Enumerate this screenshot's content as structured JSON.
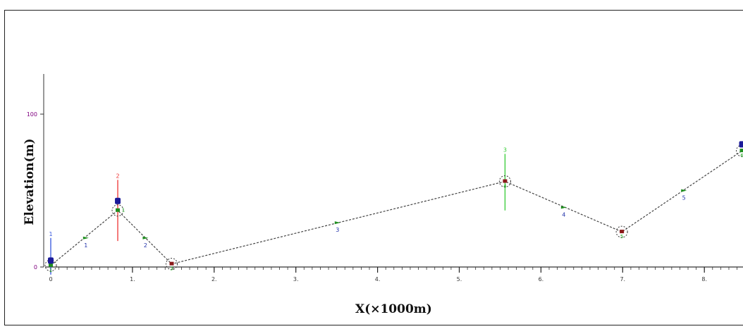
{
  "chart_data": {
    "type": "line",
    "title": "",
    "xlabel": "X(×1000m)",
    "ylabel": "Elevation(m)",
    "xlim": [
      0,
      8.5
    ],
    "ylim": [
      0,
      120
    ],
    "x_ticks": [
      {
        "value": 0,
        "label": "0"
      },
      {
        "value": 1,
        "label": "1."
      },
      {
        "value": 2,
        "label": "2."
      },
      {
        "value": 3,
        "label": "3."
      },
      {
        "value": 4,
        "label": "4."
      },
      {
        "value": 5,
        "label": "5."
      },
      {
        "value": 6,
        "label": "6."
      },
      {
        "value": 7,
        "label": "7."
      },
      {
        "value": 8,
        "label": "8."
      }
    ],
    "y_ticks": [
      {
        "value": 0,
        "label": "0"
      },
      {
        "value": 100,
        "label": "100"
      }
    ],
    "grid": false,
    "legend": "none",
    "profile": {
      "x": [
        0.0,
        0.82,
        1.48,
        5.56,
        6.99,
        8.46
      ],
      "y": [
        1,
        37,
        2,
        56,
        23,
        76
      ],
      "node_labels": [
        "1",
        "1",
        "3",
        "4",
        "5",
        "6"
      ],
      "node_marker_colors": [
        "#1f8f1f",
        "#1f8f1f",
        "#8b1a1a",
        "#8b1a1a",
        "#8b1a1a",
        "#1f8f1f"
      ]
    },
    "segment_markers": [
      {
        "label": "1",
        "x": 0.43,
        "y": 19
      },
      {
        "label": "2",
        "x": 1.16,
        "y": 19
      },
      {
        "label": "3",
        "x": 3.51,
        "y": 29
      },
      {
        "label": "4",
        "x": 6.28,
        "y": 39
      },
      {
        "label": "5",
        "x": 7.75,
        "y": 50
      }
    ],
    "vertical_indicators": [
      {
        "label": "1",
        "x": 0.0,
        "y_from": -5,
        "y_to": 19,
        "color": "#3355dd"
      },
      {
        "label": "2",
        "x": 0.82,
        "y_from": 17,
        "y_to": 57,
        "color": "#ee3333"
      },
      {
        "label": "3",
        "x": 5.56,
        "y_from": 37,
        "y_to": 74,
        "color": "#33cc33"
      }
    ],
    "structures": [
      {
        "x": 0.0,
        "y": 4,
        "color": "#1a1a99"
      },
      {
        "x": 0.82,
        "y": 43,
        "color": "#1a1a99"
      },
      {
        "x": 8.46,
        "y": 80,
        "color": "#1a1a99"
      }
    ],
    "colors": {
      "line": "#444444",
      "segment_marker": "#1f8f1f",
      "segment_label": "#2233aa",
      "node_label": "#22aa22",
      "node_circle": "#333333",
      "y_tick_label": "#800080"
    }
  }
}
